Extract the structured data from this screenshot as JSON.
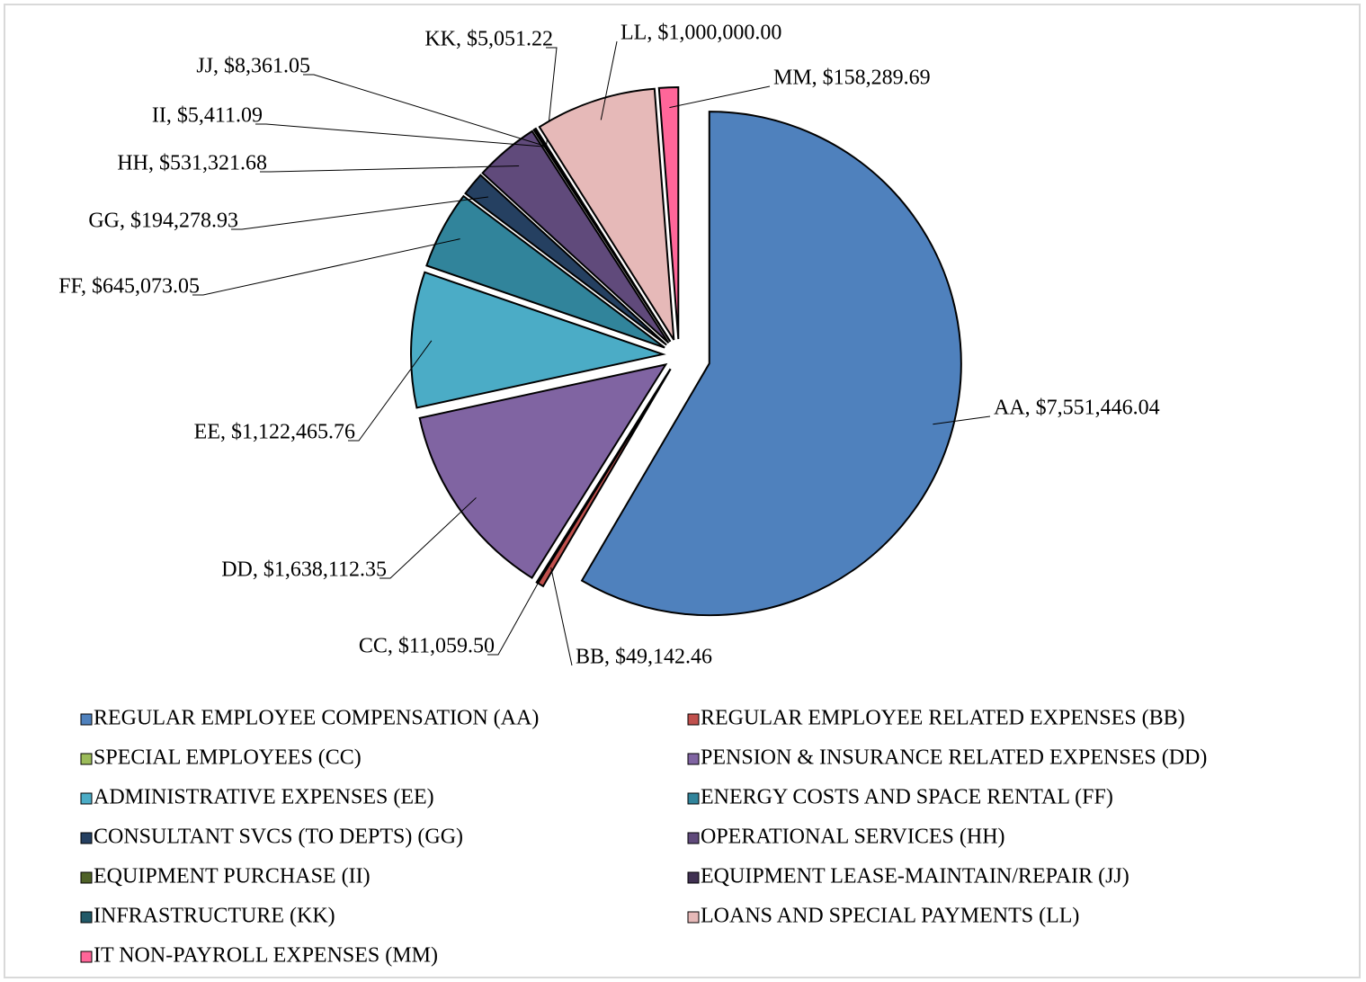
{
  "chart_data": {
    "type": "pie",
    "categories": [
      "REGULAR EMPLOYEE COMPENSATION (AA)",
      "REGULAR EMPLOYEE RELATED EXPENSES (BB)",
      "SPECIAL EMPLOYEES (CC)",
      "PENSION & INSURANCE RELATED EXPENSES (DD)",
      "ADMINISTRATIVE EXPENSES (EE)",
      "ENERGY COSTS AND SPACE RENTAL (FF)",
      "CONSULTANT SVCS (TO DEPTS) (GG)",
      "OPERATIONAL SERVICES (HH)",
      "EQUIPMENT PURCHASE (II)",
      "EQUIPMENT LEASE-MAINTAIN/REPAIR (JJ)",
      "INFRASTRUCTURE (KK)",
      "LOANS AND SPECIAL PAYMENTS (LL)",
      "IT NON-PAYROLL EXPENSES (MM)"
    ],
    "values": [
      7551446.04,
      49142.46,
      11059.5,
      1638112.35,
      1122465.76,
      645073.05,
      194278.93,
      531321.68,
      5411.09,
      8361.05,
      5051.22,
      1000000.0,
      158289.69
    ],
    "value_labels": [
      "AA, $7,551,446.04",
      "BB, $49,142.46",
      "CC, $11,059.50",
      "DD, $1,638,112.35",
      "EE, $1,122,465.76",
      "FF, $645,073.05",
      "GG, $194,278.93",
      "HH, $531,321.68",
      "II, $5,411.09",
      "JJ, $8,361.05",
      "KK, $5,051.22",
      "LL, $1,000,000.00",
      "MM, $158,289.69"
    ],
    "colors": [
      "#4f81bd",
      "#c0504d",
      "#9bbb59",
      "#8064a2",
      "#4bacc6",
      "#31849b",
      "#254061",
      "#604a7b",
      "#4f6228",
      "#403152",
      "#215968",
      "#e6b9b8",
      "#ff6699"
    ],
    "legend": "bottom"
  }
}
